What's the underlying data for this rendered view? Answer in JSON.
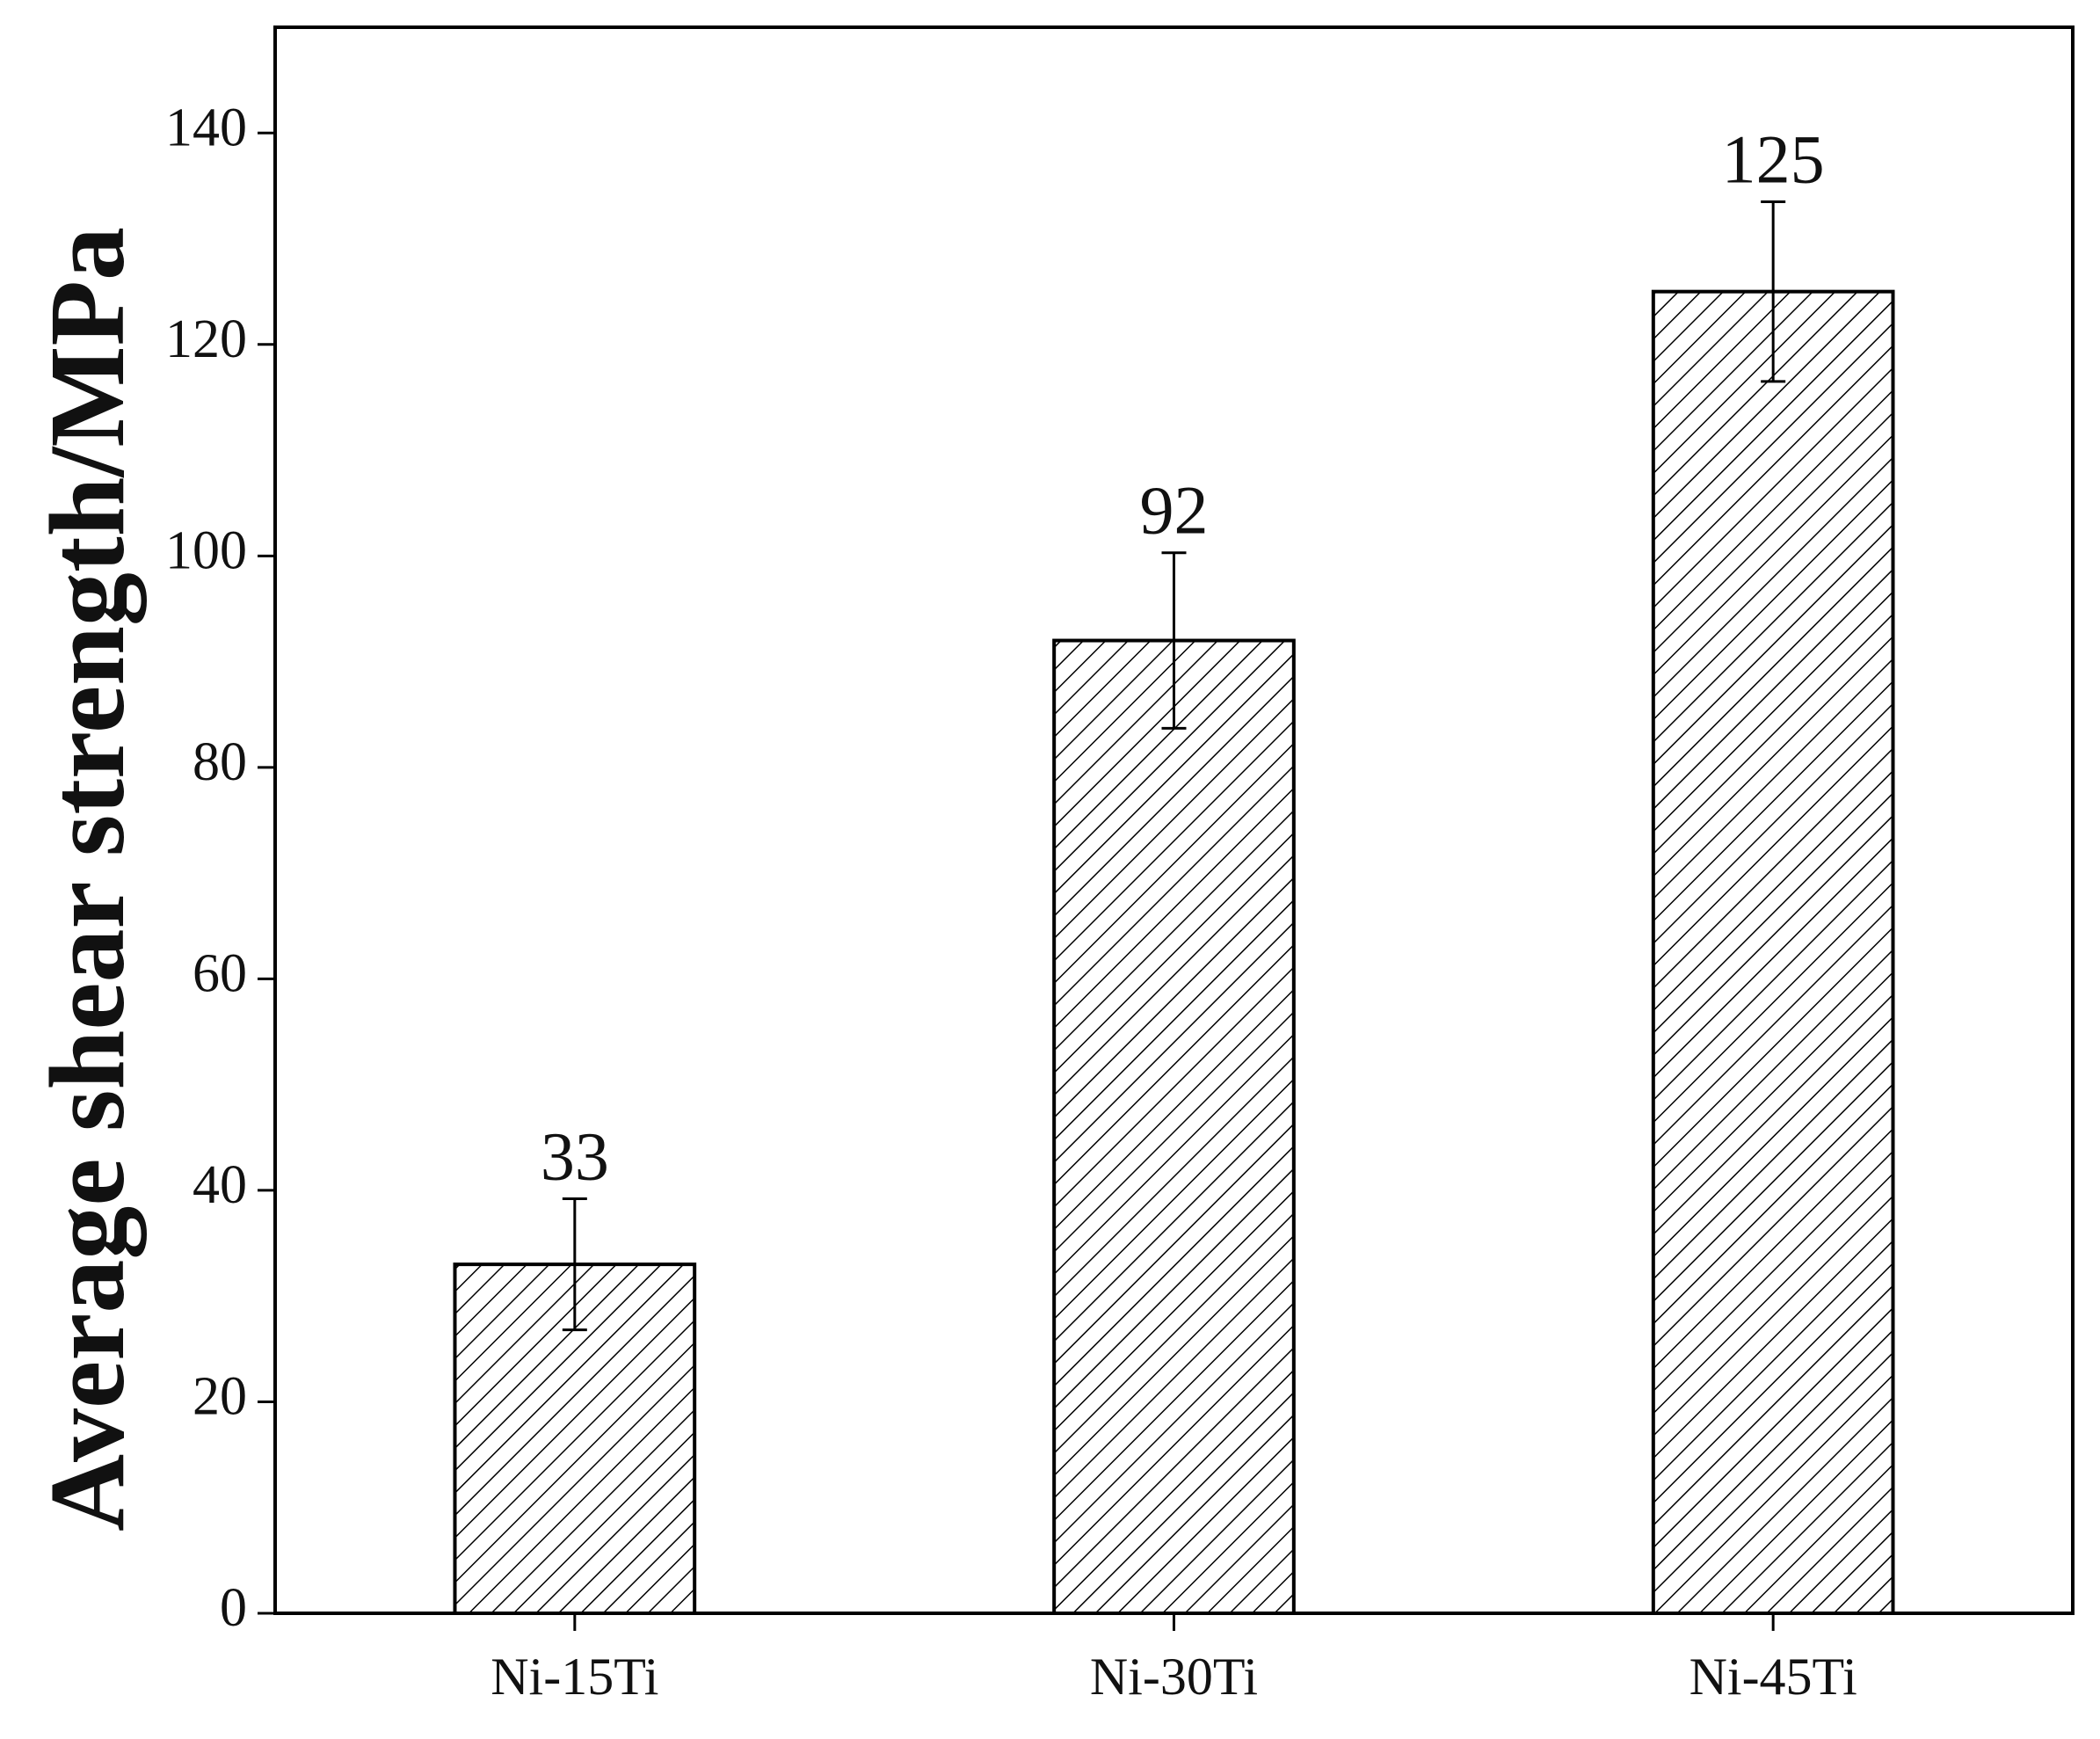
{
  "chart_data": {
    "type": "bar",
    "y_label": "Average shear strength/MPa",
    "categories": [
      "Ni-15Ti",
      "Ni-30Ti",
      "Ni-45Ti"
    ],
    "values": [
      33,
      92,
      125
    ],
    "errors": [
      6.2,
      8.3,
      8.5
    ],
    "color": "#000000",
    "ylim": [
      0,
      150
    ],
    "yticks": [
      0,
      20,
      40,
      60,
      80,
      100,
      120,
      140
    ]
  }
}
